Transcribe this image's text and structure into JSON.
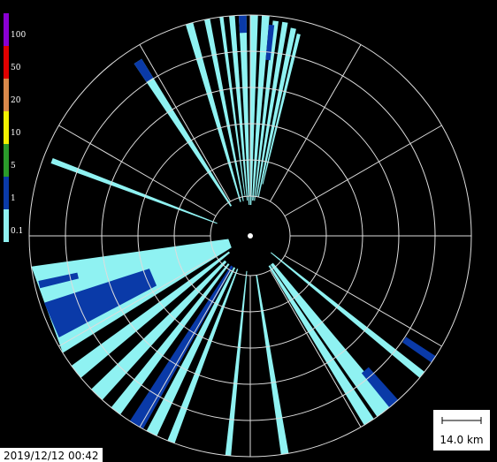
{
  "legend": {
    "levels": [
      {
        "value": 100,
        "color": "#8a00d4"
      },
      {
        "value": 50,
        "color": "#e00000"
      },
      {
        "value": 20,
        "color": "#d8884a"
      },
      {
        "value": 10,
        "color": "#f0f000"
      },
      {
        "value": 5,
        "color": "#2a9a2a"
      },
      {
        "value": 1,
        "color": "#0a3aa8"
      },
      {
        "value": 0.1,
        "color": "#8ff2f2"
      }
    ]
  },
  "scale_bar": {
    "label": "14.0 km"
  },
  "timestamp": "2019/12/12 00:42"
}
